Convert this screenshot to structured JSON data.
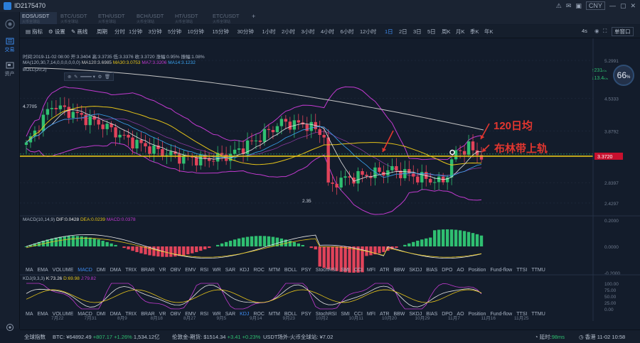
{
  "titlebar": {
    "account": "ID2175470",
    "currency": "CNY"
  },
  "sidebar": {
    "items": [
      "交易",
      "资产"
    ]
  },
  "tabs": [
    {
      "label": "EOS/USDT",
      "sub": "火币全球站"
    },
    {
      "label": "BTC/USDT",
      "sub": "火币全球站"
    },
    {
      "label": "ETH/USDT",
      "sub": "火币全球站"
    },
    {
      "label": "BCH/USDT",
      "sub": "火币全球站"
    },
    {
      "label": "HT/USDT",
      "sub": "火币全球站"
    },
    {
      "label": "ETC/USDT",
      "sub": "火币全球站"
    }
  ],
  "toolbar": {
    "tools": [
      "指标",
      "设置",
      "画线"
    ],
    "period_label": "周期",
    "periods": [
      "分时",
      "1分钟",
      "3分钟",
      "5分钟",
      "10分钟",
      "15分钟",
      "30分钟",
      "1小时",
      "2小时",
      "3小时",
      "4小时",
      "6小时",
      "12小时",
      "1日",
      "2日",
      "3日",
      "5日",
      "周K",
      "月K",
      "季K",
      "年K"
    ],
    "active_period": "1日",
    "zoom": "4s",
    "layout": "单窗口"
  },
  "chart": {
    "info_line": "时间:2019-11-02 08:00  开:3.3404  高:3.3735  低:3.3376  收:3.3720  涨幅:0.95%  振幅:1.08%",
    "ma_line": {
      "params": "MA(120,30,7,14,0,0,0,0,0,0)",
      "ma120": "MA120:3.6985",
      "ma30": "MA30:3.0753",
      "ma7": "MA7:3.3206",
      "ma14": "MA14:3.1232"
    },
    "boll_label": "BOLL(20,2)",
    "price_labels": [
      "5.2991",
      "4.5333",
      "3.8792",
      "3.3720",
      "2.8397",
      "2.4297"
    ],
    "current_price": "3.3720",
    "high_marker": "4.7705",
    "low_marker": "2.35",
    "annotation_ma": "120日均",
    "annotation_boll": "布林带上轨",
    "gauge_value": "66",
    "gauge_unit": "%",
    "speed_up": "231",
    "speed_down": "13.4",
    "speed_unit": "K/s"
  },
  "macd": {
    "label": "MACD(10,14,9)",
    "dif": "DIF:0.0428",
    "dea": "DEA:0.0239",
    "macd": "MACD:0.0378",
    "scale": [
      "0.2000",
      "0.0000",
      "-0.2000"
    ]
  },
  "kdj": {
    "label": "KDJ(9,3,3)",
    "k": "K:73.26",
    "d": "D:69.98",
    "j": "J:79.82",
    "scale": [
      "100.00",
      "75.00",
      "50.00",
      "25.00",
      "0.00"
    ]
  },
  "indicators": [
    "MA",
    "EMA",
    "VOLUME",
    "MACD",
    "DMI",
    "DMA",
    "TRIX",
    "BRAR",
    "VR",
    "OBV",
    "EMV",
    "RSI",
    "WR",
    "SAR",
    "KDJ",
    "ROC",
    "MTM",
    "BOLL",
    "PSY",
    "StochRSI",
    "SMI",
    "CCI",
    "MFI",
    "ATR",
    "BBW",
    "SKDJ",
    "BIAS",
    "DPO",
    "AO",
    "Position",
    "Fund-flow",
    "TTSI",
    "TTMU"
  ],
  "dates": [
    "7月22",
    "7月31",
    "8月9",
    "8月18",
    "8月27",
    "9月5",
    "9月14",
    "9月23",
    "10月2",
    "10月11",
    "10月20",
    "10月29",
    "11月7",
    "11月16",
    "11月25"
  ],
  "colors": {
    "up": "#2fbf71",
    "down": "#e2435a",
    "ma120": "#c5c5c5",
    "ma30": "#e6c419",
    "boll": "#c23ad0",
    "accent": "#3d8cf0"
  },
  "statusbar": {
    "index": "全球指数",
    "btc_label": "BTC:",
    "btc_price": "¥64892.49",
    "btc_change": "+807.17",
    "btc_pct": "+1.26%",
    "btc_volume": "1,534.12亿",
    "btc_label2": "伦敦金-期货:",
    "gold_price": "$1514.34",
    "gold_change": "+3.41",
    "gold_pct": "+0.23%",
    "usdt_label": "USDT场外-火币全球站:",
    "usdt_price": "¥7.02",
    "network_label": "延时:",
    "latency": "98ms",
    "timezone": "香港 11-02 10:58"
  }
}
